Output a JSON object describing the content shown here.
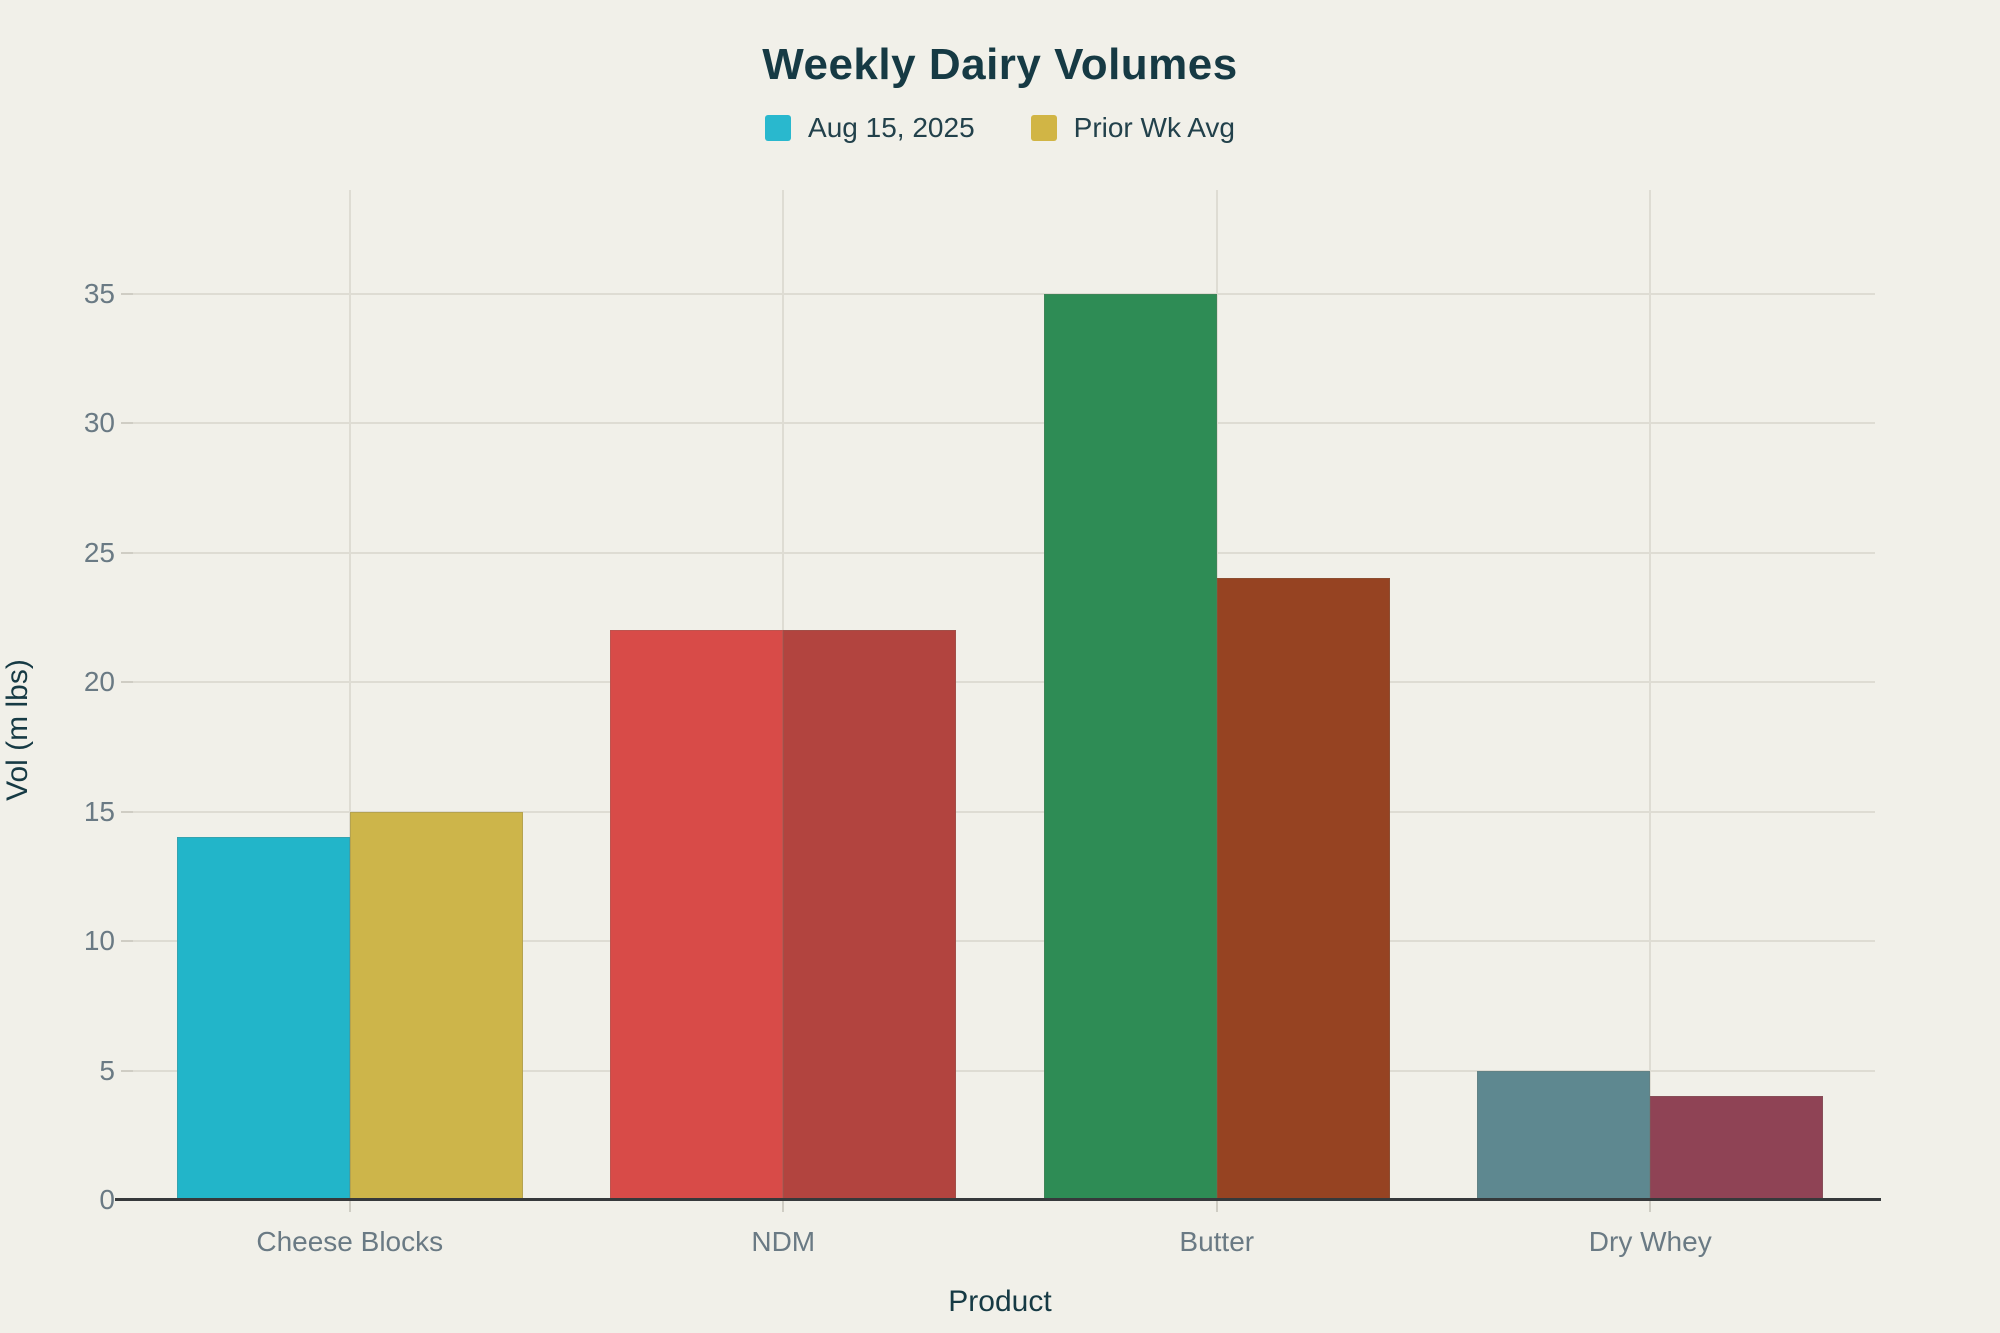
{
  "chart_data": {
    "type": "bar",
    "title": "Weekly Dairy Volumes",
    "xlabel": "Product",
    "ylabel": "Vol (m lbs)",
    "categories": [
      "Cheese Blocks",
      "NDM",
      "Butter",
      "Dry Whey"
    ],
    "series": [
      {
        "name": "Aug 15, 2025",
        "values": [
          14,
          22,
          35,
          5
        ],
        "bar_colors": [
          "#22b5c9",
          "#d84b48",
          "#2e8c55",
          "#5e8890"
        ],
        "legend_color": "#29b8ce"
      },
      {
        "name": "Prior Wk Avg",
        "values": [
          15,
          22,
          24,
          4
        ],
        "bar_colors": [
          "#cdb54a",
          "#b2443f",
          "#964322",
          "#8f4355"
        ],
        "legend_color": "#d1b545"
      }
    ],
    "yticks": [
      0,
      5,
      10,
      15,
      20,
      25,
      30,
      35
    ],
    "ylim": [
      0,
      35
    ],
    "grid": true,
    "legend_position": "top-center"
  },
  "style_colors": {
    "background": "#f1f0e9",
    "title_text": "#163a44",
    "tick_label_text": "#6a7a84",
    "gridline": "#dedcd3",
    "axis_line": "#36393b"
  }
}
